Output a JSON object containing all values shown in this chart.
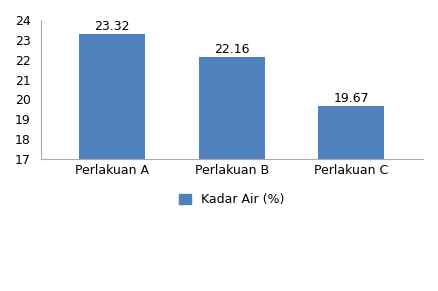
{
  "categories": [
    "Perlakuan A",
    "Perlakuan B",
    "Perlakuan C"
  ],
  "values": [
    23.32,
    22.16,
    19.67
  ],
  "bar_color": "#4F81BD",
  "ylim": [
    17,
    24
  ],
  "yticks": [
    17,
    18,
    19,
    20,
    21,
    22,
    23,
    24
  ],
  "legend_label": "Kadar Air (%)",
  "value_labels": [
    "23.32",
    "22.16",
    "19.67"
  ],
  "bar_width": 0.55,
  "background_color": "#ffffff",
  "label_fontsize": 9,
  "tick_fontsize": 9,
  "legend_fontsize": 9,
  "spine_color": "#aaaaaa"
}
